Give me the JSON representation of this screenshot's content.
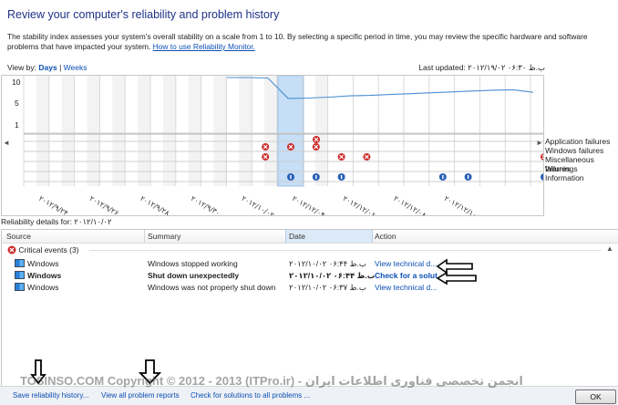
{
  "window": {
    "title": "Review your computer's reliability and problem history",
    "description": "The stability index assesses your system's overall stability on a scale from 1 to 10. By selecting a specific period in time, you may review the specific hardware and software problems that have impacted your system.",
    "help_link": "How to use Reliability Monitor."
  },
  "viewby": {
    "label": "View by:",
    "days": "Days",
    "separator": "|",
    "weeks": "Weeks"
  },
  "last_updated": "Last updated: ب.ظ ۰۶:۳۰ ۲۰۱۲/۱۹/۰۲",
  "chart": {
    "y_ticks": [
      "10",
      "5",
      "1"
    ],
    "categories": [
      "Application failures",
      "Windows failures",
      "Miscellaneous failures",
      "Warnings",
      "Information"
    ],
    "date_labels": [
      "۲۰۱۲/۹/۲۴",
      "۲۰۱۲/۹/۲۶",
      "۲۰۱۲/۹/۲۸",
      "۲۰۱۲/۹/۳۰",
      "۲۰۱۲/۱۰/۰۲",
      "۲۰۱۲/۱۲/۰۴",
      "۲۰۱۲/۱۲/۰۶",
      "۲۰۱۲/۱۲/۰۸",
      "۲۰۱۲/۱۲/۱۰"
    ],
    "nav_left": "◄",
    "nav_right": "►"
  },
  "chart_data": {
    "type": "line",
    "ylim": [
      1,
      10
    ],
    "columns": 25,
    "selected_column": 11,
    "stability_index": [
      null,
      null,
      null,
      null,
      null,
      null,
      null,
      null,
      null,
      10,
      10,
      9.9,
      5.2,
      5.3,
      5.5,
      5.8,
      5.9,
      6.1,
      6.3,
      6.5,
      6.7,
      6.9,
      7.1,
      7.2,
      6.6
    ],
    "windows_failures": [
      11,
      12,
      13
    ],
    "misc_failures": [
      11,
      14,
      15,
      22,
      23
    ],
    "app_failures": [
      12
    ],
    "information": [
      12,
      13,
      14,
      18,
      19,
      22
    ]
  },
  "details": {
    "label": "Reliability details for: ۲۰۱۲/۱۰/۰۲",
    "columns": [
      "Source",
      "Summary",
      "Date",
      "Action"
    ],
    "group": "Critical events (3)",
    "rows": [
      {
        "source": "Windows",
        "summary": "Windows stopped working",
        "date": "ب.ظ ۰۶:۴۴ ۲۰۱۲/۱۰/۰۲",
        "action": "View  technical d...",
        "bold": false
      },
      {
        "source": "Windows",
        "summary": "Shut down unexpectedly",
        "date": "ب.ظ ۰۶:۴۴ ۲۰۱۲/۱۰/۰۲",
        "action": "Check for a solut...",
        "bold": true
      },
      {
        "source": "Windows",
        "summary": "Windows was not properly shut down",
        "date": "ب.ظ ۰۶:۳۷ ۲۰۱۲/۱۰/۰۲",
        "action": "View  technical d...",
        "bold": false
      }
    ]
  },
  "bottom": {
    "save_history": "Save reliability history...",
    "view_all": "View all problem reports",
    "check_solutions": "Check for solutions to all problems ...",
    "ok": "OK",
    "watermark": "TOSINSO.COM Copyright © 2012 - 2013 (ITPro.ir) - انجمن تخصصی فناوری اطلاعات ایران"
  },
  "colors": {
    "title": "#1e3287",
    "link": "#0b4fb4",
    "line": "#4a8fd0",
    "selected": "#c6def6",
    "error": "#cc2b2b",
    "info": "#2a5fb8"
  }
}
